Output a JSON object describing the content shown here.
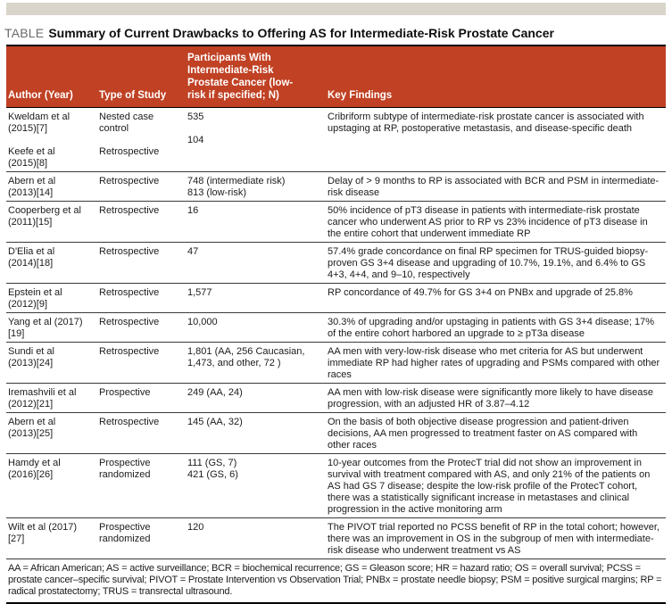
{
  "page": {
    "table_label": "TABLE",
    "table_title": "Summary of Current Drawbacks to Offering AS for Intermediate-Risk Prostate Cancer"
  },
  "colors": {
    "header_bg": "#c04124",
    "header_text": "#ffffff",
    "top_bar": "#d9d5ca",
    "rule": "#000000"
  },
  "table": {
    "headers": [
      "Author (Year)",
      "Type of Study",
      "Participants With\nIntermediate-Risk\nProstate Cancer (low-\nrisk if specified; N)",
      "Key Findings"
    ],
    "rows": [
      {
        "author": [
          "Kweldam et al\n(2015)[7]",
          "Keefe et al\n(2015)[8]"
        ],
        "study": [
          "Nested case\ncontrol",
          "Retrospective"
        ],
        "participants": [
          "535",
          "104"
        ],
        "findings": "Cribriform subtype of intermediate-risk prostate cancer is associated with upstaging at RP, postoperative metastasis, and disease-specific death"
      },
      {
        "author": [
          "Abern et al\n(2013)[14]"
        ],
        "study": [
          "Retrospective"
        ],
        "participants": [
          "748 (intermediate risk)\n813 (low-risk)"
        ],
        "findings": "Delay of > 9 months to RP is associated with BCR and PSM in intermediate-risk disease"
      },
      {
        "author": [
          "Cooperberg et al\n(2011)[15]"
        ],
        "study": [
          "Retrospective"
        ],
        "participants": [
          "16"
        ],
        "findings": "50% incidence of pT3 disease in patients with intermediate-risk prostate cancer who underwent AS prior to RP vs 23% incidence of pT3 disease in the entire cohort that underwent immediate RP"
      },
      {
        "author": [
          "D'Elia et al\n(2014)[18]"
        ],
        "study": [
          "Retrospective"
        ],
        "participants": [
          "47"
        ],
        "findings": "57.4% grade concordance on final RP specimen for TRUS-guided biopsy-proven GS 3+4 disease and upgrading of 10.7%, 19.1%, and 6.4% to GS 4+3, 4+4, and 9–10, respectively"
      },
      {
        "author": [
          "Epstein et al\n(2012)[9]"
        ],
        "study": [
          "Retrospective"
        ],
        "participants": [
          "1,577"
        ],
        "findings": "RP concordance of 49.7% for GS 3+4 on PNBx and upgrade of 25.8%"
      },
      {
        "author": [
          "Yang et al (2017)\n[19]"
        ],
        "study": [
          "Retrospective"
        ],
        "participants": [
          "10,000"
        ],
        "findings": "30.3% of upgrading and/or upstaging in patients with GS 3+4 disease; 17% of the entire cohort harbored an upgrade to ≥ pT3a disease"
      },
      {
        "author": [
          "Sundi et al\n(2013)[24]"
        ],
        "study": [
          "Retrospective"
        ],
        "participants": [
          "1,801 (AA, 256 Caucasian,\n1,473, and other, 72 )"
        ],
        "findings": "AA men with very-low-risk disease who met criteria for AS but underwent immediate RP had higher rates of upgrading and PSMs compared with other races"
      },
      {
        "author": [
          "Iremashvili et al\n(2012)[21]"
        ],
        "study": [
          "Prospective"
        ],
        "participants": [
          "249 (AA, 24)"
        ],
        "findings": "AA men with low-risk disease were significantly more likely to have disease progression, with an adjusted HR of 3.87–4.12"
      },
      {
        "author": [
          "Abern et al\n(2013)[25]"
        ],
        "study": [
          "Retrospective"
        ],
        "participants": [
          "145 (AA, 32)"
        ],
        "findings": "On the basis of both objective disease progression and patient-driven decisions, AA men progressed to treatment faster on AS compared with other races"
      },
      {
        "author": [
          "Hamdy et al\n(2016)[26]"
        ],
        "study": [
          "Prospective\nrandomized"
        ],
        "participants": [
          "111 (GS, 7)\n421 (GS, 6)"
        ],
        "findings": "10-year outcomes from the ProtecT trial did not show an improvement in survival with treatment compared with AS, and only 21% of the patients on AS had GS 7 disease; despite the low-risk profile of the ProtecT cohort, there was a statistically significant increase in metastases and clinical progression in the active monitoring arm"
      },
      {
        "author": [
          "Wilt et al (2017)\n[27]"
        ],
        "study": [
          "Prospective\nrandomized"
        ],
        "participants": [
          "120"
        ],
        "findings": "The PIVOT trial reported no PCSS benefit of RP in the total cohort; however, there was an improvement in OS in the subgroup of men with intermediate-risk disease who underwent treatment vs AS"
      }
    ]
  },
  "footnote": "AA = African American; AS = active surveillance; BCR = biochemical recurrence; GS = Gleason score; HR = hazard ratio; OS = overall survival; PCSS = prostate cancer–specific survival; PIVOT = Prostate Intervention vs Observation Trial; PNBx = prostate needle biopsy; PSM = positive surgical margins; RP = radical prostatectomy; TRUS = transrectal ultrasound."
}
